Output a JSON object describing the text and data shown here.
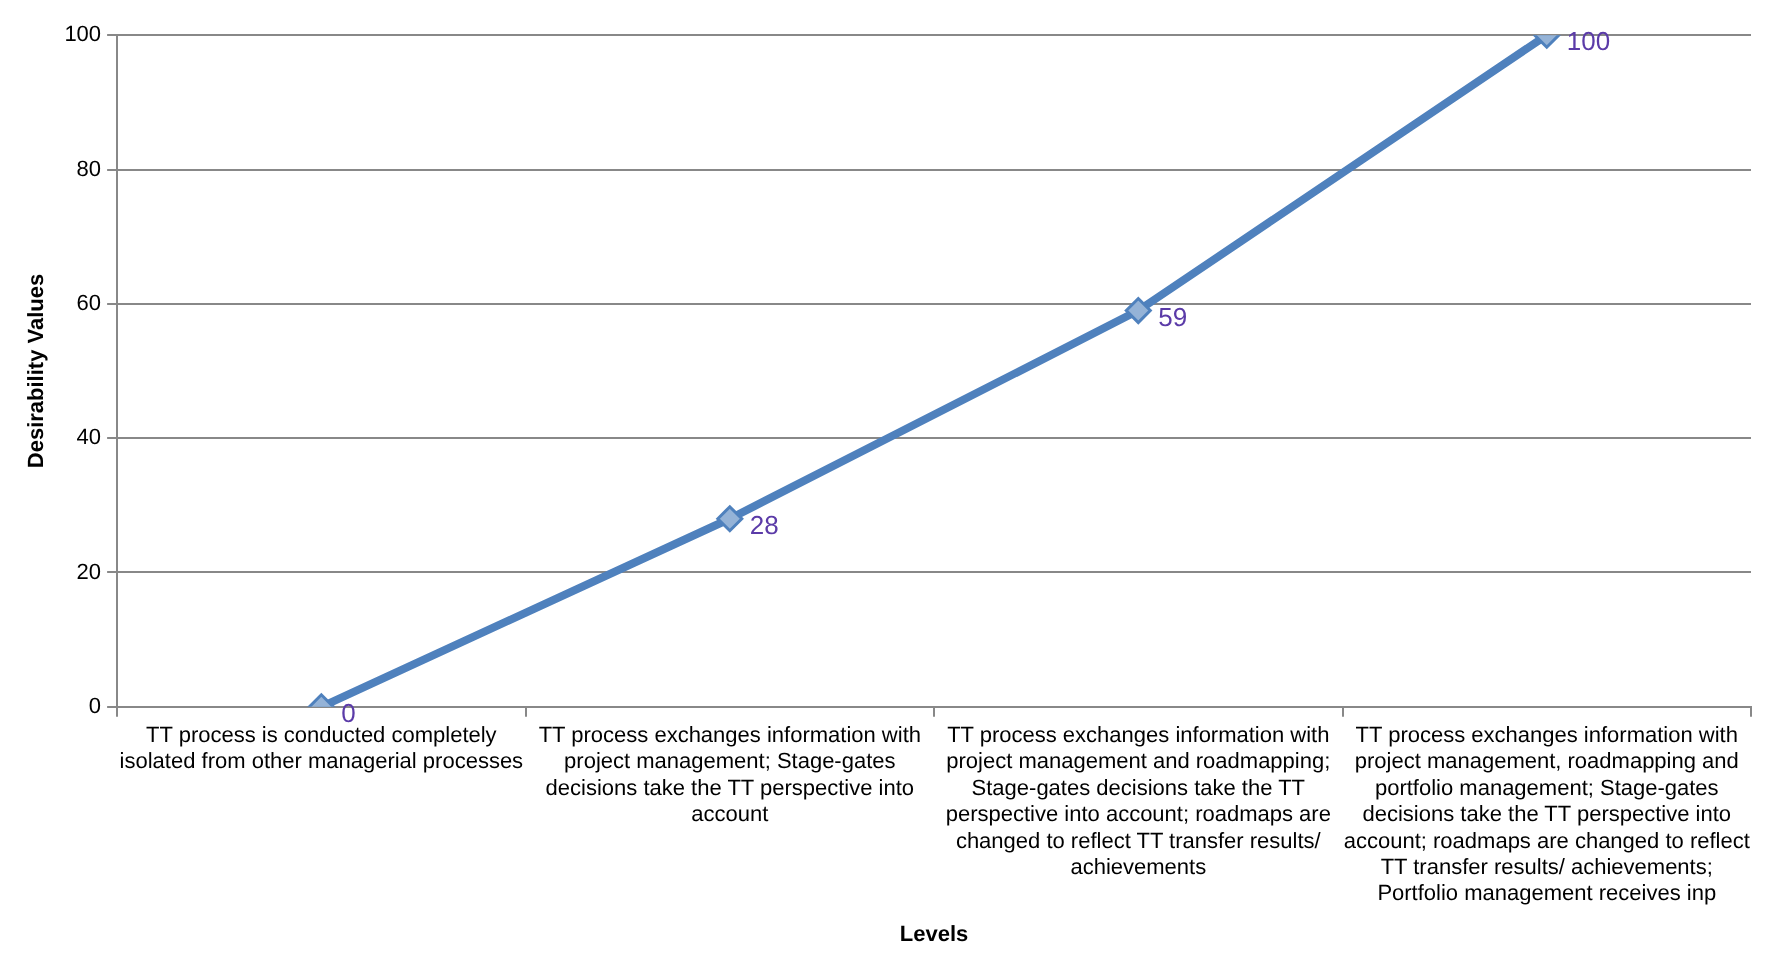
{
  "chart_data": {
    "type": "line",
    "xlabel": "Levels",
    "ylabel": "Desirability Values",
    "categories": [
      "TT process is conducted completely isolated from other managerial processes",
      "TT process exchanges information with project management; Stage-gates decisions take the TT perspective into account",
      "TT process exchanges information with project management and roadmapping; Stage-gates decisions take the TT perspective into account; roadmaps are changed to reflect TT transfer results/ achievements",
      "TT process exchanges information with project management, roadmapping and portfolio management; Stage-gates decisions take the TT perspective into account; roadmaps are changed to reflect TT transfer results/ achievements; Portfolio management receives inp"
    ],
    "series": [
      {
        "color": "#4f81bd",
        "values": [
          0,
          28,
          59,
          100
        ]
      }
    ],
    "ylim": [
      0,
      100
    ],
    "yticks": [
      0,
      20,
      40,
      60,
      80,
      100
    ],
    "grid": "y",
    "marker": "diamond",
    "line_style": "solid",
    "data_labels": true
  }
}
